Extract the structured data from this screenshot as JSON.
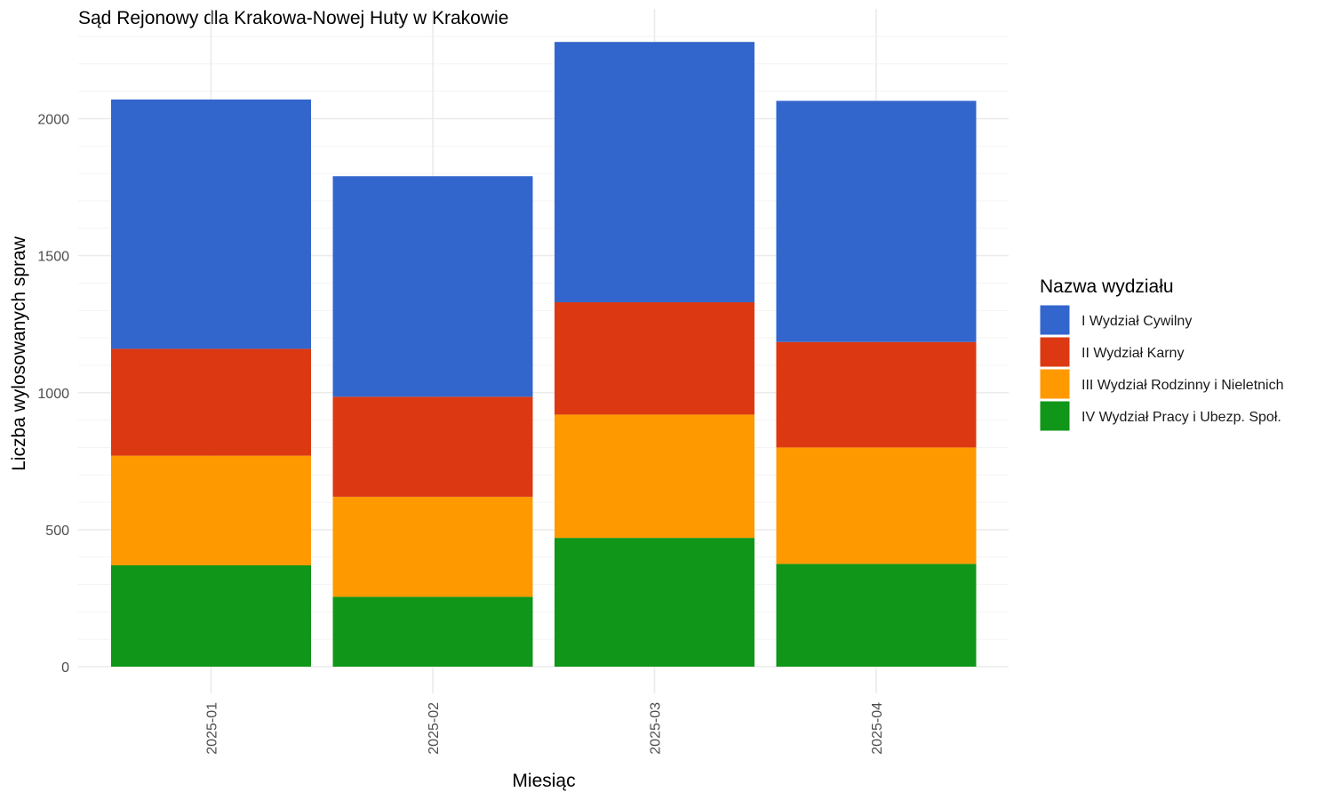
{
  "chart_data": {
    "type": "bar",
    "stacked": true,
    "title": "Sąd Rejonowy dla Krakowa-Nowej Huty w Krakowie",
    "xlabel": "Miesiąc",
    "ylabel": "Liczba wylosowanych spraw",
    "categories": [
      "2025-01",
      "2025-02",
      "2025-03",
      "2025-04"
    ],
    "ylim": [
      0,
      2300
    ],
    "yticks": [
      0,
      500,
      1000,
      1500,
      2000
    ],
    "grid": true,
    "legend_title": "Nazwa wydziału",
    "legend_position": "right",
    "series": [
      {
        "name": "IV Wydział Pracy i Ubezp. Społ.",
        "color": "#109618",
        "values": [
          370,
          255,
          470,
          375
        ]
      },
      {
        "name": "III Wydział Rodzinny i Nieletnich",
        "color": "#FF9900",
        "values": [
          400,
          365,
          450,
          425
        ]
      },
      {
        "name": "II Wydział Karny",
        "color": "#DC3912",
        "values": [
          390,
          365,
          410,
          385
        ]
      },
      {
        "name": "I Wydział Cywilny",
        "color": "#3366CC",
        "values": [
          910,
          805,
          950,
          880
        ]
      }
    ],
    "legend_order": [
      "I Wydział Cywilny",
      "II Wydział Karny",
      "III Wydział Rodzinny i Nieletnich",
      "IV Wydział Pracy i Ubezp. Społ."
    ]
  }
}
